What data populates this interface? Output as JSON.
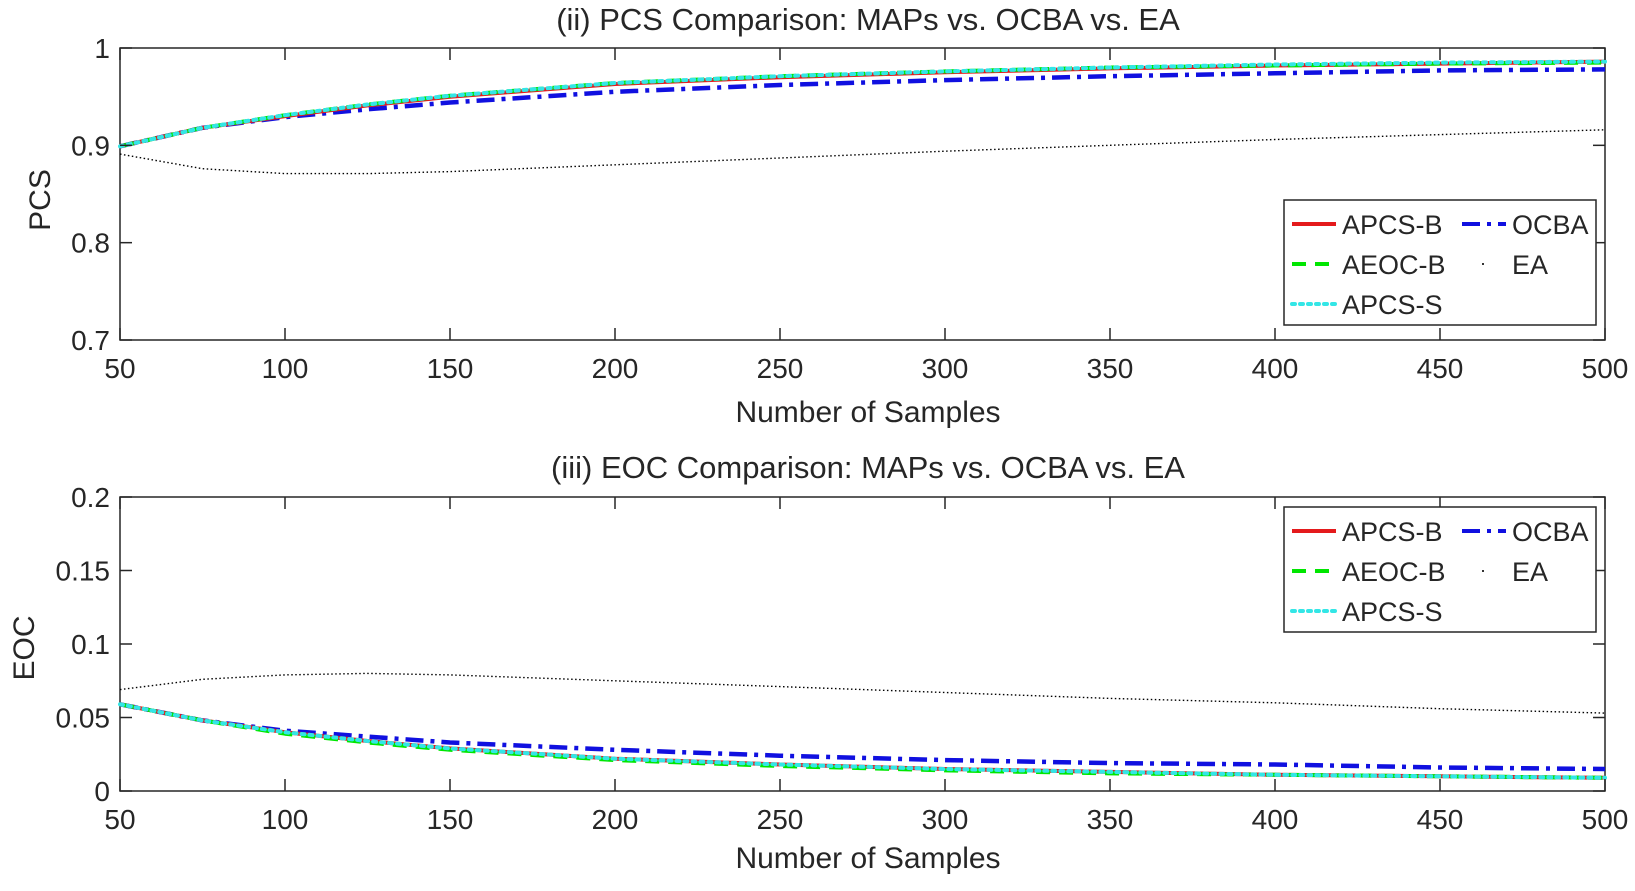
{
  "chart_data": [
    {
      "type": "line",
      "title": "(ii) PCS Comparison: MAPs vs. OCBA vs. EA",
      "xlabel": "Number of Samples",
      "ylabel": "PCS",
      "xlim": [
        50,
        500
      ],
      "ylim": [
        0.7,
        1
      ],
      "x_ticks": [
        "50",
        "100",
        "150",
        "200",
        "250",
        "300",
        "350",
        "400",
        "450",
        "500"
      ],
      "y_ticks": [
        "0.7",
        "0.8",
        "0.9",
        "1"
      ],
      "grid": false,
      "legend_position": "bottom-right",
      "x": [
        50,
        75,
        100,
        125,
        150,
        200,
        250,
        300,
        350,
        400,
        450,
        500
      ],
      "series": [
        {
          "name": "APCS-B",
          "color": "#e41a1c",
          "style": "solid",
          "values": [
            0.899,
            0.918,
            0.93,
            0.941,
            0.95,
            0.963,
            0.97,
            0.975,
            0.979,
            0.982,
            0.984,
            0.986
          ]
        },
        {
          "name": "AEOC-B",
          "color": "#00e600",
          "style": "dashed",
          "values": [
            0.899,
            0.918,
            0.931,
            0.942,
            0.951,
            0.964,
            0.971,
            0.976,
            0.98,
            0.982,
            0.984,
            0.985
          ]
        },
        {
          "name": "APCS-S",
          "color": "#33e6e6",
          "style": "dotted",
          "values": [
            0.899,
            0.918,
            0.931,
            0.942,
            0.951,
            0.964,
            0.971,
            0.976,
            0.98,
            0.983,
            0.985,
            0.986
          ]
        },
        {
          "name": "OCBA",
          "color": "#1010e0",
          "style": "dashdot",
          "values": [
            0.899,
            0.918,
            0.929,
            0.937,
            0.944,
            0.955,
            0.962,
            0.967,
            0.971,
            0.974,
            0.977,
            0.978
          ]
        },
        {
          "name": "EA",
          "color": "#000000",
          "style": "dotted-thin",
          "values": [
            0.891,
            0.876,
            0.871,
            0.871,
            0.873,
            0.88,
            0.887,
            0.894,
            0.9,
            0.906,
            0.911,
            0.916
          ]
        }
      ]
    },
    {
      "type": "line",
      "title": "(iii) EOC Comparison: MAPs vs. OCBA vs. EA",
      "xlabel": "Number of Samples",
      "ylabel": "EOC",
      "xlim": [
        50,
        500
      ],
      "ylim": [
        0,
        0.2
      ],
      "x_ticks": [
        "50",
        "100",
        "150",
        "200",
        "250",
        "300",
        "350",
        "400",
        "450",
        "500"
      ],
      "y_ticks": [
        "0",
        "0.05",
        "0.1",
        "0.15",
        "0.2"
      ],
      "grid": false,
      "legend_position": "top-right",
      "x": [
        50,
        75,
        100,
        125,
        150,
        200,
        250,
        300,
        350,
        400,
        450,
        500
      ],
      "series": [
        {
          "name": "APCS-B",
          "color": "#e41a1c",
          "style": "solid",
          "values": [
            0.059,
            0.048,
            0.04,
            0.034,
            0.029,
            0.022,
            0.018,
            0.015,
            0.013,
            0.011,
            0.01,
            0.009
          ]
        },
        {
          "name": "AEOC-B",
          "color": "#00e600",
          "style": "dashed",
          "values": [
            0.059,
            0.048,
            0.039,
            0.033,
            0.028,
            0.021,
            0.017,
            0.014,
            0.012,
            0.011,
            0.01,
            0.009
          ]
        },
        {
          "name": "APCS-S",
          "color": "#33e6e6",
          "style": "dotted",
          "values": [
            0.059,
            0.048,
            0.04,
            0.034,
            0.029,
            0.022,
            0.018,
            0.015,
            0.013,
            0.011,
            0.01,
            0.009
          ]
        },
        {
          "name": "OCBA",
          "color": "#1010e0",
          "style": "dashdot",
          "values": [
            0.059,
            0.048,
            0.041,
            0.037,
            0.033,
            0.028,
            0.024,
            0.021,
            0.019,
            0.018,
            0.016,
            0.015
          ]
        },
        {
          "name": "EA",
          "color": "#000000",
          "style": "dotted-thin",
          "values": [
            0.069,
            0.076,
            0.079,
            0.08,
            0.079,
            0.075,
            0.071,
            0.067,
            0.063,
            0.06,
            0.056,
            0.053
          ]
        }
      ]
    }
  ]
}
